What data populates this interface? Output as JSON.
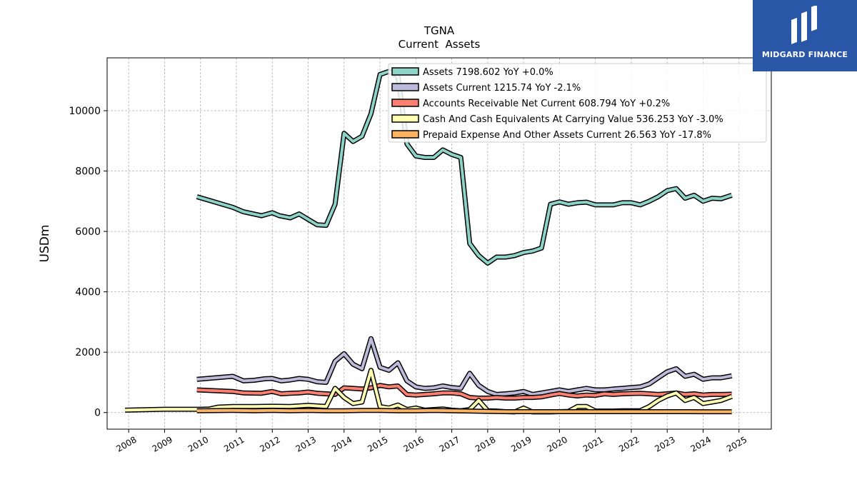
{
  "brand": {
    "name": "MIDGARD FINANCE",
    "bg": "#2a56a8"
  },
  "chart_data": {
    "type": "line",
    "title": "TGNA",
    "subtitle": "Current  Assets",
    "ylabel": "USDm",
    "xlabel": "",
    "xlim": [
      2007.4,
      2025.9
    ],
    "ylim": [
      -550,
      11750
    ],
    "yticks": [
      0,
      2000,
      4000,
      6000,
      8000,
      10000
    ],
    "xticks": [
      2008,
      2009,
      2010,
      2011,
      2012,
      2013,
      2014,
      2015,
      2016,
      2017,
      2018,
      2019,
      2020,
      2021,
      2022,
      2023,
      2024,
      2025
    ],
    "grid": true,
    "legend_position": "top-right",
    "series": [
      {
        "name": "Assets",
        "legend": "Assets  7198.602 YoY +0.0%",
        "color": "#8dd3c7",
        "points": [
          [
            2009.9,
            7150
          ],
          [
            2010.9,
            6800
          ],
          [
            2011.2,
            6650
          ],
          [
            2011.7,
            6520
          ],
          [
            2012.0,
            6620
          ],
          [
            2012.2,
            6520
          ],
          [
            2012.5,
            6450
          ],
          [
            2012.75,
            6580
          ],
          [
            2013.0,
            6400
          ],
          [
            2013.25,
            6220
          ],
          [
            2013.5,
            6200
          ],
          [
            2013.75,
            6900
          ],
          [
            2014.0,
            9250
          ],
          [
            2014.25,
            8980
          ],
          [
            2014.5,
            9150
          ],
          [
            2014.75,
            9900
          ],
          [
            2015.0,
            11200
          ],
          [
            2015.25,
            11300
          ],
          [
            2015.5,
            11150
          ],
          [
            2015.75,
            8900
          ],
          [
            2016.0,
            8500
          ],
          [
            2016.25,
            8450
          ],
          [
            2016.5,
            8450
          ],
          [
            2016.75,
            8700
          ],
          [
            2017.0,
            8550
          ],
          [
            2017.25,
            8450
          ],
          [
            2017.5,
            5600
          ],
          [
            2017.75,
            5200
          ],
          [
            2018.0,
            4950
          ],
          [
            2018.25,
            5150
          ],
          [
            2018.5,
            5150
          ],
          [
            2018.75,
            5200
          ],
          [
            2019.0,
            5300
          ],
          [
            2019.25,
            5350
          ],
          [
            2019.5,
            5450
          ],
          [
            2019.75,
            6900
          ],
          [
            2020.0,
            6980
          ],
          [
            2020.25,
            6900
          ],
          [
            2020.5,
            6950
          ],
          [
            2020.75,
            6970
          ],
          [
            2021.0,
            6880
          ],
          [
            2021.25,
            6880
          ],
          [
            2021.5,
            6880
          ],
          [
            2021.75,
            6950
          ],
          [
            2022.0,
            6950
          ],
          [
            2022.25,
            6880
          ],
          [
            2022.5,
            7000
          ],
          [
            2022.75,
            7150
          ],
          [
            2023.0,
            7350
          ],
          [
            2023.25,
            7420
          ],
          [
            2023.5,
            7100
          ],
          [
            2023.75,
            7200
          ],
          [
            2024.0,
            7000
          ],
          [
            2024.25,
            7100
          ],
          [
            2024.5,
            7080
          ],
          [
            2024.8,
            7199
          ]
        ]
      },
      {
        "name": "Assets Current",
        "legend": "Assets Current  1215.74 YoY -2.1%",
        "color": "#bebada",
        "points": [
          [
            2009.9,
            1100
          ],
          [
            2010.9,
            1200
          ],
          [
            2011.2,
            1050
          ],
          [
            2011.5,
            1070
          ],
          [
            2011.8,
            1120
          ],
          [
            2012.0,
            1130
          ],
          [
            2012.25,
            1050
          ],
          [
            2012.5,
            1080
          ],
          [
            2012.75,
            1130
          ],
          [
            2013.0,
            1100
          ],
          [
            2013.25,
            1020
          ],
          [
            2013.5,
            1000
          ],
          [
            2013.75,
            1700
          ],
          [
            2014.0,
            1950
          ],
          [
            2014.25,
            1600
          ],
          [
            2014.5,
            1450
          ],
          [
            2014.75,
            2450
          ],
          [
            2015.0,
            1500
          ],
          [
            2015.25,
            1400
          ],
          [
            2015.5,
            1650
          ],
          [
            2015.75,
            1050
          ],
          [
            2016.0,
            850
          ],
          [
            2016.25,
            800
          ],
          [
            2016.5,
            820
          ],
          [
            2016.75,
            880
          ],
          [
            2017.0,
            830
          ],
          [
            2017.25,
            800
          ],
          [
            2017.5,
            1300
          ],
          [
            2017.75,
            900
          ],
          [
            2018.0,
            700
          ],
          [
            2018.25,
            600
          ],
          [
            2018.5,
            620
          ],
          [
            2018.75,
            650
          ],
          [
            2019.0,
            700
          ],
          [
            2019.25,
            600
          ],
          [
            2019.5,
            650
          ],
          [
            2019.75,
            700
          ],
          [
            2020.0,
            750
          ],
          [
            2020.25,
            700
          ],
          [
            2020.5,
            750
          ],
          [
            2020.75,
            800
          ],
          [
            2021.0,
            750
          ],
          [
            2021.25,
            750
          ],
          [
            2021.5,
            780
          ],
          [
            2021.75,
            800
          ],
          [
            2022.0,
            830
          ],
          [
            2022.25,
            850
          ],
          [
            2022.5,
            950
          ],
          [
            2022.75,
            1150
          ],
          [
            2023.0,
            1350
          ],
          [
            2023.25,
            1450
          ],
          [
            2023.5,
            1200
          ],
          [
            2023.75,
            1270
          ],
          [
            2024.0,
            1100
          ],
          [
            2024.25,
            1150
          ],
          [
            2024.5,
            1150
          ],
          [
            2024.8,
            1216
          ]
        ]
      },
      {
        "name": "Accounts Receivable Net Current",
        "legend": "Accounts Receivable Net Current  608.794 YoY +0.2%",
        "color": "#fb8072",
        "points": [
          [
            2009.9,
            750
          ],
          [
            2010.9,
            700
          ],
          [
            2011.2,
            650
          ],
          [
            2011.7,
            640
          ],
          [
            2012.0,
            700
          ],
          [
            2012.25,
            620
          ],
          [
            2012.5,
            640
          ],
          [
            2012.75,
            650
          ],
          [
            2013.0,
            680
          ],
          [
            2013.25,
            640
          ],
          [
            2013.5,
            620
          ],
          [
            2013.75,
            600
          ],
          [
            2014.0,
            820
          ],
          [
            2014.25,
            800
          ],
          [
            2014.5,
            780
          ],
          [
            2014.75,
            820
          ],
          [
            2015.0,
            900
          ],
          [
            2015.25,
            850
          ],
          [
            2015.5,
            880
          ],
          [
            2015.75,
            600
          ],
          [
            2016.0,
            580
          ],
          [
            2016.25,
            600
          ],
          [
            2016.5,
            620
          ],
          [
            2016.75,
            650
          ],
          [
            2017.0,
            650
          ],
          [
            2017.25,
            620
          ],
          [
            2017.5,
            500
          ],
          [
            2017.75,
            480
          ],
          [
            2018.0,
            480
          ],
          [
            2018.25,
            500
          ],
          [
            2018.5,
            480
          ],
          [
            2018.75,
            480
          ],
          [
            2019.0,
            500
          ],
          [
            2019.25,
            500
          ],
          [
            2019.5,
            520
          ],
          [
            2019.75,
            580
          ],
          [
            2020.0,
            630
          ],
          [
            2020.25,
            580
          ],
          [
            2020.5,
            550
          ],
          [
            2020.75,
            580
          ],
          [
            2021.0,
            570
          ],
          [
            2021.25,
            620
          ],
          [
            2021.5,
            600
          ],
          [
            2021.75,
            620
          ],
          [
            2022.0,
            630
          ],
          [
            2022.25,
            640
          ],
          [
            2022.5,
            620
          ],
          [
            2022.75,
            600
          ],
          [
            2023.0,
            620
          ],
          [
            2023.25,
            650
          ],
          [
            2023.5,
            600
          ],
          [
            2023.75,
            620
          ],
          [
            2024.0,
            580
          ],
          [
            2024.25,
            600
          ],
          [
            2024.5,
            600
          ],
          [
            2024.8,
            609
          ]
        ]
      },
      {
        "name": "Cash And Cash Equivalents At Carrying Value",
        "legend": "Cash And Cash Equivalents At Carrying Value  536.253 YoY -3.0%",
        "color": "#ffffb3",
        "points": [
          [
            2007.9,
            80
          ],
          [
            2009.0,
            110
          ],
          [
            2009.5,
            110
          ],
          [
            2010.0,
            110
          ],
          [
            2010.25,
            120
          ],
          [
            2010.5,
            180
          ],
          [
            2010.9,
            200
          ],
          [
            2011.5,
            200
          ],
          [
            2012.0,
            210
          ],
          [
            2012.5,
            200
          ],
          [
            2013.0,
            240
          ],
          [
            2013.5,
            200
          ],
          [
            2013.75,
            800
          ],
          [
            2014.0,
            500
          ],
          [
            2014.25,
            300
          ],
          [
            2014.5,
            350
          ],
          [
            2014.75,
            1400
          ],
          [
            2015.0,
            200
          ],
          [
            2015.25,
            150
          ],
          [
            2015.5,
            250
          ],
          [
            2015.75,
            100
          ],
          [
            2016.0,
            150
          ],
          [
            2016.25,
            80
          ],
          [
            2016.5,
            100
          ],
          [
            2016.75,
            120
          ],
          [
            2017.0,
            80
          ],
          [
            2017.25,
            60
          ],
          [
            2017.5,
            100
          ],
          [
            2017.75,
            400
          ],
          [
            2018.0,
            60
          ],
          [
            2018.25,
            50
          ],
          [
            2018.5,
            30
          ],
          [
            2018.75,
            20
          ],
          [
            2019.0,
            150
          ],
          [
            2019.25,
            20
          ],
          [
            2019.5,
            20
          ],
          [
            2019.75,
            20
          ],
          [
            2020.0,
            30
          ],
          [
            2020.25,
            40
          ],
          [
            2020.5,
            200
          ],
          [
            2020.75,
            200
          ],
          [
            2021.0,
            50
          ],
          [
            2021.25,
            50
          ],
          [
            2021.5,
            50
          ],
          [
            2021.75,
            60
          ],
          [
            2022.0,
            60
          ],
          [
            2022.25,
            60
          ],
          [
            2022.5,
            200
          ],
          [
            2022.75,
            400
          ],
          [
            2023.0,
            550
          ],
          [
            2023.25,
            650
          ],
          [
            2023.5,
            400
          ],
          [
            2023.75,
            500
          ],
          [
            2024.0,
            300
          ],
          [
            2024.25,
            350
          ],
          [
            2024.5,
            400
          ],
          [
            2024.8,
            536
          ]
        ]
      },
      {
        "name": "Prepaid Expense And Other Assets Current",
        "legend": "Prepaid Expense And Other Assets Current  26.563 YoY -17.8%",
        "color": "#fdb462",
        "points": [
          [
            2009.9,
            60
          ],
          [
            2010.9,
            70
          ],
          [
            2011.5,
            60
          ],
          [
            2012.0,
            70
          ],
          [
            2012.5,
            60
          ],
          [
            2013.0,
            70
          ],
          [
            2013.5,
            60
          ],
          [
            2014.0,
            60
          ],
          [
            2014.5,
            70
          ],
          [
            2015.0,
            70
          ],
          [
            2015.5,
            60
          ],
          [
            2016.0,
            60
          ],
          [
            2016.5,
            70
          ],
          [
            2017.0,
            60
          ],
          [
            2017.5,
            50
          ],
          [
            2018.0,
            40
          ],
          [
            2018.5,
            30
          ],
          [
            2019.0,
            30
          ],
          [
            2019.5,
            30
          ],
          [
            2020.0,
            30
          ],
          [
            2020.5,
            30
          ],
          [
            2021.0,
            30
          ],
          [
            2021.5,
            30
          ],
          [
            2022.0,
            30
          ],
          [
            2022.5,
            30
          ],
          [
            2023.0,
            30
          ],
          [
            2023.5,
            30
          ],
          [
            2024.0,
            28
          ],
          [
            2024.8,
            27
          ]
        ]
      }
    ]
  }
}
